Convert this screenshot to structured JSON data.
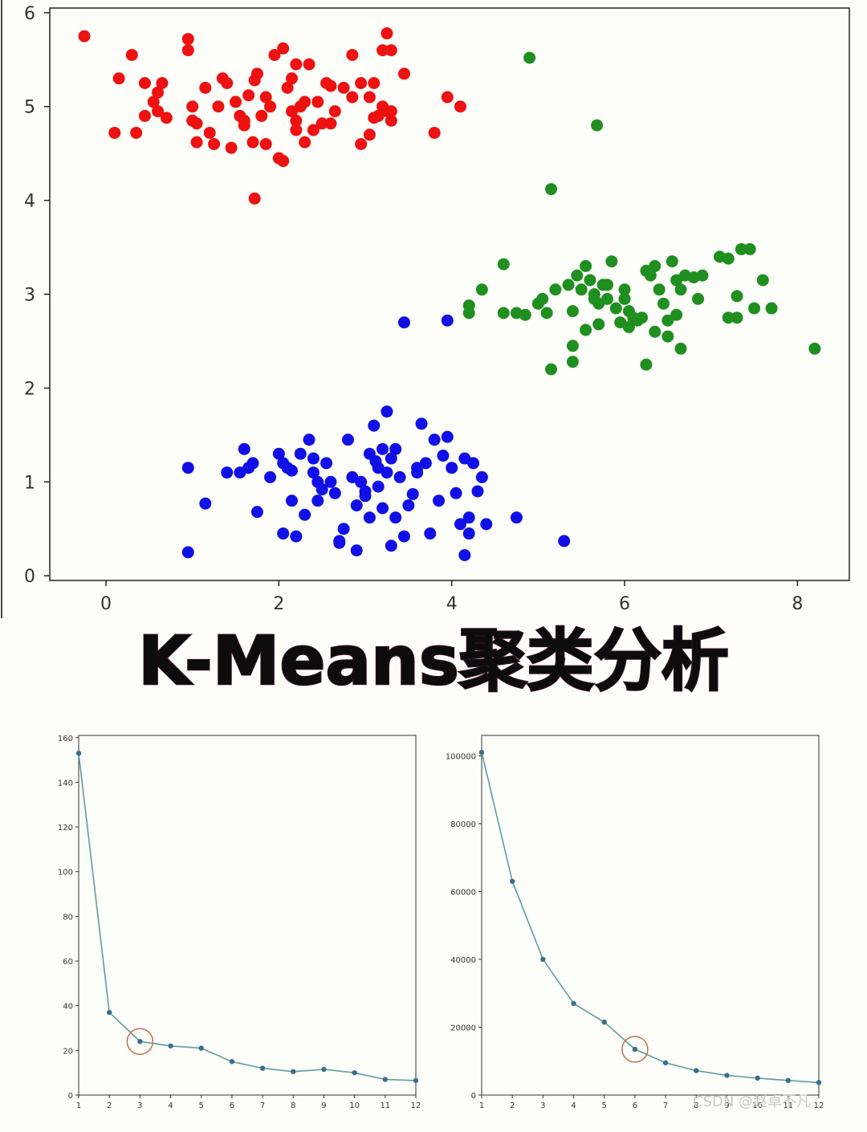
{
  "title": "K-Means聚类分析",
  "watermark": "CSDN @赵卓不凡",
  "colors": {
    "background": "#fdfdf9",
    "cluster_red": "#ee1111",
    "cluster_green": "#1f8f1f",
    "cluster_blue": "#1010e6",
    "elbow_line": "#5e9e9c",
    "elbow_point": "#3a6f8f",
    "highlight_circle": "#c07050",
    "title_fill": "#0c0c0c"
  },
  "chart_data": [
    {
      "type": "scatter",
      "title": "",
      "xlabel": "",
      "ylabel": "",
      "xlim": [
        -0.65,
        8.6
      ],
      "ylim": [
        -0.05,
        6.05
      ],
      "xticks": [
        0,
        2,
        4,
        6,
        8
      ],
      "yticks": [
        0,
        1,
        2,
        3,
        4,
        5,
        6
      ],
      "grid": false,
      "legend": "none",
      "series": [
        {
          "color": "#ee1111",
          "points": [
            [
              -0.25,
              5.75
            ],
            [
              0.3,
              5.55
            ],
            [
              0.15,
              5.3
            ],
            [
              0.45,
              5.25
            ],
            [
              0.65,
              5.25
            ],
            [
              0.1,
              4.72
            ],
            [
              0.35,
              4.72
            ],
            [
              0.45,
              4.9
            ],
            [
              0.55,
              5.05
            ],
            [
              0.6,
              5.15
            ],
            [
              0.7,
              4.88
            ],
            [
              0.95,
              5.72
            ],
            [
              0.95,
              5.6
            ],
            [
              1.0,
              5.0
            ],
            [
              1.05,
              4.82
            ],
            [
              1.05,
              4.62
            ],
            [
              1.15,
              5.2
            ],
            [
              1.2,
              4.72
            ],
            [
              1.25,
              4.6
            ],
            [
              1.3,
              5.0
            ],
            [
              1.35,
              5.3
            ],
            [
              1.4,
              5.25
            ],
            [
              1.45,
              4.56
            ],
            [
              1.5,
              5.05
            ],
            [
              1.55,
              4.9
            ],
            [
              1.6,
              4.8
            ],
            [
              1.65,
              5.12
            ],
            [
              1.7,
              4.62
            ],
            [
              1.72,
              5.28
            ],
            [
              1.75,
              5.35
            ],
            [
              1.8,
              4.9
            ],
            [
              1.85,
              5.1
            ],
            [
              1.85,
              4.6
            ],
            [
              1.9,
              5.0
            ],
            [
              1.95,
              5.55
            ],
            [
              2.0,
              4.45
            ],
            [
              2.05,
              4.42
            ],
            [
              2.05,
              5.62
            ],
            [
              2.1,
              5.2
            ],
            [
              2.15,
              4.95
            ],
            [
              2.15,
              5.3
            ],
            [
              2.2,
              4.85
            ],
            [
              2.2,
              5.45
            ],
            [
              2.25,
              5.0
            ],
            [
              2.3,
              5.05
            ],
            [
              2.3,
              4.62
            ],
            [
              2.35,
              5.45
            ],
            [
              2.4,
              4.75
            ],
            [
              2.45,
              5.05
            ],
            [
              2.5,
              4.82
            ],
            [
              2.6,
              4.82
            ],
            [
              2.65,
              4.95
            ],
            [
              2.55,
              5.25
            ],
            [
              2.75,
              5.2
            ],
            [
              2.85,
              5.55
            ],
            [
              2.85,
              5.1
            ],
            [
              2.95,
              4.6
            ],
            [
              3.05,
              4.7
            ],
            [
              3.1,
              4.88
            ],
            [
              3.15,
              4.9
            ],
            [
              3.2,
              5.0
            ],
            [
              3.25,
              4.95
            ],
            [
              3.3,
              4.85
            ],
            [
              3.3,
              4.95
            ],
            [
              3.05,
              5.1
            ],
            [
              3.1,
              5.25
            ],
            [
              2.95,
              5.25
            ],
            [
              3.2,
              5.6
            ],
            [
              3.3,
              5.6
            ],
            [
              3.25,
              5.78
            ],
            [
              3.45,
              5.35
            ],
            [
              3.8,
              4.72
            ],
            [
              3.95,
              5.1
            ],
            [
              4.1,
              5.0
            ],
            [
              1.72,
              4.02
            ],
            [
              0.6,
              4.95
            ],
            [
              1.0,
              4.85
            ],
            [
              2.6,
              5.22
            ],
            [
              2.2,
              4.75
            ],
            [
              1.6,
              4.85
            ]
          ]
        },
        {
          "color": "#1f8f1f",
          "points": [
            [
              4.9,
              5.52
            ],
            [
              5.68,
              4.8
            ],
            [
              5.15,
              4.12
            ],
            [
              4.6,
              3.32
            ],
            [
              4.35,
              3.05
            ],
            [
              4.2,
              2.88
            ],
            [
              4.2,
              2.8
            ],
            [
              4.6,
              2.8
            ],
            [
              4.75,
              2.8
            ],
            [
              4.85,
              2.78
            ],
            [
              5.0,
              2.9
            ],
            [
              5.05,
              2.95
            ],
            [
              5.1,
              2.8
            ],
            [
              5.2,
              3.05
            ],
            [
              5.35,
              3.1
            ],
            [
              5.4,
              2.82
            ],
            [
              5.45,
              3.2
            ],
            [
              5.5,
              3.05
            ],
            [
              5.55,
              3.3
            ],
            [
              5.6,
              3.15
            ],
            [
              5.65,
              3.0
            ],
            [
              5.7,
              2.9
            ],
            [
              5.75,
              3.1
            ],
            [
              5.8,
              2.95
            ],
            [
              5.85,
              3.35
            ],
            [
              5.9,
              2.85
            ],
            [
              5.95,
              2.7
            ],
            [
              6.0,
              2.95
            ],
            [
              6.05,
              2.82
            ],
            [
              6.1,
              2.75
            ],
            [
              6.15,
              2.72
            ],
            [
              6.2,
              2.75
            ],
            [
              6.25,
              3.25
            ],
            [
              6.3,
              3.2
            ],
            [
              6.35,
              3.3
            ],
            [
              6.4,
              3.05
            ],
            [
              6.45,
              2.9
            ],
            [
              6.5,
              2.72
            ],
            [
              6.55,
              3.35
            ],
            [
              6.6,
              3.15
            ],
            [
              6.65,
              3.05
            ],
            [
              6.7,
              3.2
            ],
            [
              6.8,
              3.18
            ],
            [
              6.85,
              2.95
            ],
            [
              6.9,
              3.2
            ],
            [
              7.1,
              3.4
            ],
            [
              7.2,
              3.38
            ],
            [
              7.3,
              2.98
            ],
            [
              7.35,
              3.48
            ],
            [
              7.45,
              3.48
            ],
            [
              7.6,
              3.15
            ],
            [
              7.7,
              2.85
            ],
            [
              7.5,
              2.85
            ],
            [
              7.2,
              2.75
            ],
            [
              7.3,
              2.75
            ],
            [
              5.4,
              2.45
            ],
            [
              5.4,
              2.28
            ],
            [
              5.15,
              2.2
            ],
            [
              6.25,
              2.25
            ],
            [
              6.65,
              2.42
            ],
            [
              5.55,
              2.62
            ],
            [
              5.7,
              2.68
            ],
            [
              6.5,
              2.55
            ],
            [
              6.35,
              2.6
            ],
            [
              8.2,
              2.42
            ],
            [
              5.65,
              2.95
            ],
            [
              6.0,
              3.05
            ],
            [
              5.8,
              3.1
            ],
            [
              6.6,
              2.78
            ],
            [
              6.05,
              2.65
            ]
          ]
        },
        {
          "color": "#1010e6",
          "points": [
            [
              3.45,
              2.7
            ],
            [
              3.95,
              2.72
            ],
            [
              0.95,
              1.15
            ],
            [
              1.15,
              0.77
            ],
            [
              0.95,
              0.25
            ],
            [
              1.4,
              1.1
            ],
            [
              1.55,
              1.1
            ],
            [
              1.6,
              1.35
            ],
            [
              1.65,
              1.15
            ],
            [
              1.7,
              1.2
            ],
            [
              1.75,
              0.68
            ],
            [
              1.9,
              1.05
            ],
            [
              2.0,
              1.3
            ],
            [
              2.05,
              1.2
            ],
            [
              2.05,
              0.45
            ],
            [
              2.1,
              1.15
            ],
            [
              2.15,
              1.12
            ],
            [
              2.15,
              0.8
            ],
            [
              2.2,
              0.42
            ],
            [
              2.25,
              1.3
            ],
            [
              2.3,
              0.65
            ],
            [
              2.35,
              1.45
            ],
            [
              2.4,
              1.25
            ],
            [
              2.4,
              1.1
            ],
            [
              2.45,
              0.8
            ],
            [
              2.5,
              0.92
            ],
            [
              2.55,
              1.2
            ],
            [
              2.6,
              1.0
            ],
            [
              2.65,
              0.88
            ],
            [
              2.7,
              0.35
            ],
            [
              2.75,
              0.5
            ],
            [
              2.8,
              1.45
            ],
            [
              2.85,
              1.05
            ],
            [
              2.9,
              0.75
            ],
            [
              2.95,
              1.0
            ],
            [
              3.0,
              0.9
            ],
            [
              3.05,
              1.3
            ],
            [
              3.1,
              1.6
            ],
            [
              3.12,
              1.22
            ],
            [
              3.15,
              1.15
            ],
            [
              3.2,
              1.35
            ],
            [
              3.25,
              1.1
            ],
            [
              3.3,
              1.25
            ],
            [
              3.3,
              0.32
            ],
            [
              3.35,
              1.35
            ],
            [
              3.4,
              1.05
            ],
            [
              3.45,
              0.42
            ],
            [
              3.5,
              0.75
            ],
            [
              3.55,
              0.87
            ],
            [
              3.6,
              1.15
            ],
            [
              3.65,
              1.62
            ],
            [
              3.7,
              1.2
            ],
            [
              3.75,
              0.45
            ],
            [
              3.8,
              1.45
            ],
            [
              3.85,
              0.8
            ],
            [
              3.9,
              1.28
            ],
            [
              3.95,
              1.48
            ],
            [
              4.0,
              1.15
            ],
            [
              4.05,
              0.88
            ],
            [
              4.1,
              0.55
            ],
            [
              4.15,
              1.25
            ],
            [
              4.2,
              0.62
            ],
            [
              4.25,
              1.2
            ],
            [
              4.3,
              0.9
            ],
            [
              4.35,
              1.05
            ],
            [
              4.4,
              0.55
            ],
            [
              4.15,
              0.22
            ],
            [
              4.2,
              0.45
            ],
            [
              4.75,
              0.62
            ],
            [
              5.3,
              0.37
            ],
            [
              2.9,
              0.27
            ],
            [
              3.2,
              0.72
            ],
            [
              2.7,
              0.37
            ],
            [
              3.05,
              0.62
            ],
            [
              3.35,
              0.62
            ],
            [
              3.25,
              1.75
            ],
            [
              2.45,
              1.0
            ],
            [
              3.0,
              0.85
            ],
            [
              3.15,
              0.95
            ],
            [
              3.6,
              1.1
            ]
          ]
        }
      ]
    },
    {
      "type": "line",
      "title": "",
      "xlabel": "",
      "ylabel": "",
      "x": [
        1,
        2,
        3,
        4,
        5,
        6,
        7,
        8,
        9,
        10,
        11,
        12
      ],
      "values": [
        153,
        37,
        24,
        22,
        21,
        15,
        12,
        10.5,
        11.5,
        10,
        7,
        6.5
      ],
      "xlim": [
        1,
        12
      ],
      "ylim": [
        0,
        161
      ],
      "xticks": [
        1,
        2,
        3,
        4,
        5,
        6,
        7,
        8,
        9,
        10,
        11,
        12
      ],
      "yticks": [
        0,
        20,
        40,
        60,
        80,
        100,
        120,
        140,
        160
      ],
      "highlight": {
        "x": 3,
        "y": 24
      },
      "grid": false,
      "legend": "none"
    },
    {
      "type": "line",
      "title": "",
      "xlabel": "",
      "ylabel": "",
      "x": [
        1,
        2,
        3,
        4,
        5,
        6,
        7,
        8,
        9,
        10,
        11,
        12
      ],
      "values": [
        101000,
        63000,
        40000,
        27000,
        21500,
        13500,
        9500,
        7200,
        5800,
        5000,
        4300,
        3700
      ],
      "xlim": [
        1,
        12
      ],
      "ylim": [
        0,
        106000
      ],
      "xticks": [
        1,
        2,
        3,
        4,
        5,
        6,
        7,
        8,
        9,
        10,
        11,
        12
      ],
      "yticks": [
        0,
        20000,
        40000,
        60000,
        80000,
        100000
      ],
      "highlight": {
        "x": 6,
        "y": 13500
      },
      "grid": false,
      "legend": "none"
    }
  ]
}
